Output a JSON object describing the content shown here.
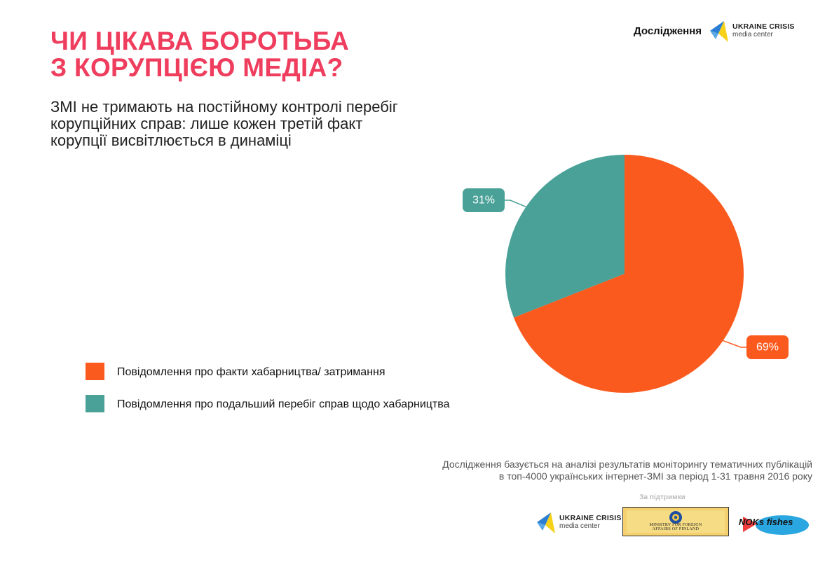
{
  "header": {
    "research_label": "Дослідження",
    "logo_line1": "UKRAINE CRISIS",
    "logo_line2": "media center"
  },
  "title": {
    "line1": "ЧИ ЦІКАВА БОРОТЬБА",
    "line2": "З КОРУПЦІЄЮ МЕДІА?"
  },
  "subtitle": "ЗМІ не тримають на постійному контролі перебіг корупційних справ: лише кожен третій факт корупції висвітлюється в динаміці",
  "colors": {
    "title": "#ef3d5e",
    "orange": "#fb5a1e",
    "teal": "#4aa197"
  },
  "chart_data": {
    "type": "pie",
    "slices": [
      {
        "label": "Повідомлення про факти хабарництва/ затримання",
        "value": 69,
        "value_label": "69%",
        "color": "#fb5a1e"
      },
      {
        "label": "Повідомлення про подальший перебіг справ щодо хабарництва",
        "value": 31,
        "value_label": "31%",
        "color": "#4aa197"
      }
    ],
    "legend_position": "bottom-left"
  },
  "footnote": {
    "line1": "Дослідження базується на аналізі результатів моніторингу тематичних публікацій",
    "line2": "в топ-4000 українських інтернет-ЗМІ за період 1-31 травня 2016 року"
  },
  "support": {
    "label": "За підтримки",
    "logo1_line1": "UKRAINE CRISIS",
    "logo1_line2": "media center",
    "ministry_line1": "MINISTRY FOR FOREIGN",
    "ministry_line2": "AFFAIRS OF FINLAND",
    "noks_label": "NOKs fishes"
  }
}
